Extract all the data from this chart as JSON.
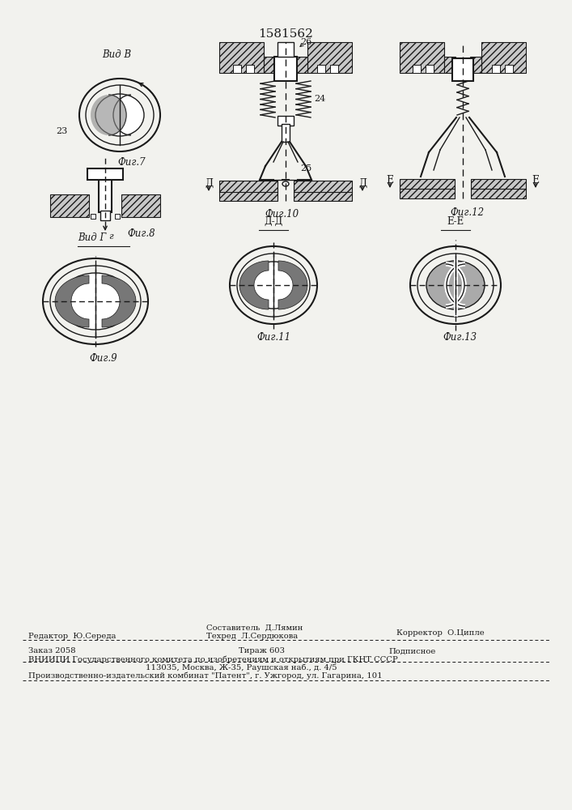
{
  "patent_number": "1581562",
  "bg_color": "#f2f2ee",
  "lc": "#1a1a1a",
  "fig7_label": "Фиг.7",
  "fig8_label": "Фиг.8",
  "fig9_label": "Фиг.9",
  "fig10_label": "Фиг.10",
  "fig11_label": "Фиг.11",
  "fig12_label": "Фиг.12",
  "fig13_label": "Фиг.13",
  "label_vid_v": "Вид В",
  "label_vid_g": "Вид Г",
  "label_dd": "Д-Д",
  "label_ee": "Е-Е",
  "label_23": "23",
  "label_24": "24",
  "label_25": "25",
  "label_26": "26",
  "label_d": "Д",
  "label_e": "Е",
  "label_g": "г",
  "footer_editor": "Редактор  Ю.Середа",
  "footer_composer": "Составитель  Д.Лямин",
  "footer_techred": "Техред  Л.Сердюкова",
  "footer_corrector": "Корректор  О.Ципле",
  "footer_order": "Заказ 2058",
  "footer_print": "Тираж 603",
  "footer_signed": "Подписное",
  "footer_org": "ВНИИПИ Государственного комитета по изобретениям и открытиям при ГКНТ СССР",
  "footer_addr": "113035, Москва, Ж-35, Раушская наб., д. 4/5",
  "footer_plant": "Производственно-издательский комбинат \"Патент\", г. Ужгород, ул. Гагарина, 101"
}
